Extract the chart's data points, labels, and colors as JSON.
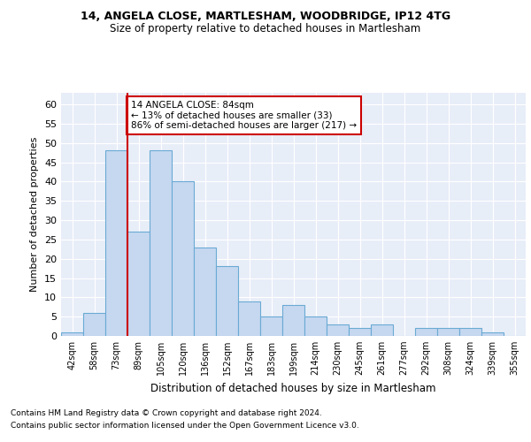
{
  "title1": "14, ANGELA CLOSE, MARTLESHAM, WOODBRIDGE, IP12 4TG",
  "title2": "Size of property relative to detached houses in Martlesham",
  "xlabel": "Distribution of detached houses by size in Martlesham",
  "ylabel": "Number of detached properties",
  "categories": [
    "42sqm",
    "58sqm",
    "73sqm",
    "89sqm",
    "105sqm",
    "120sqm",
    "136sqm",
    "152sqm",
    "167sqm",
    "183sqm",
    "199sqm",
    "214sqm",
    "230sqm",
    "245sqm",
    "261sqm",
    "277sqm",
    "292sqm",
    "308sqm",
    "324sqm",
    "339sqm",
    "355sqm"
  ],
  "values": [
    1,
    6,
    48,
    27,
    48,
    40,
    23,
    18,
    9,
    5,
    8,
    5,
    3,
    2,
    3,
    0,
    2,
    2,
    2,
    1,
    0
  ],
  "bar_color": "#c5d8f0",
  "bar_edge_color": "#6aaad4",
  "vline_x_index": 2,
  "vline_color": "#cc0000",
  "annotation_text": "14 ANGELA CLOSE: 84sqm\n← 13% of detached houses are smaller (33)\n86% of semi-detached houses are larger (217) →",
  "annotation_box_color": "white",
  "annotation_box_edge_color": "#cc0000",
  "ylim": [
    0,
    63
  ],
  "yticks": [
    0,
    5,
    10,
    15,
    20,
    25,
    30,
    35,
    40,
    45,
    50,
    55,
    60
  ],
  "footer1": "Contains HM Land Registry data © Crown copyright and database right 2024.",
  "footer2": "Contains public sector information licensed under the Open Government Licence v3.0.",
  "bg_color": "#ffffff",
  "plot_bg_color": "#e8eef8"
}
